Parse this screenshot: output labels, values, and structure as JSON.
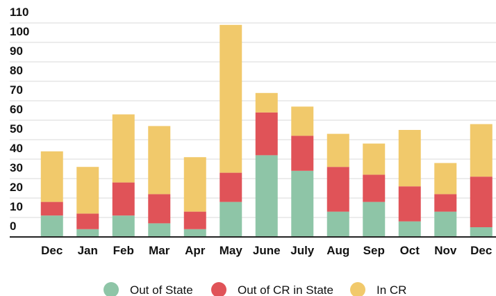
{
  "chart_data": {
    "type": "stacked_bar",
    "categories": [
      "Dec",
      "Jan",
      "Feb",
      "Mar",
      "Apr",
      "May",
      "June",
      "July",
      "Aug",
      "Sep",
      "Oct",
      "Nov",
      "Dec"
    ],
    "series": [
      {
        "name": "Out of State",
        "color": "#8ec5a7",
        "values": [
          11,
          4,
          11,
          7,
          4,
          18,
          42,
          34,
          13,
          18,
          8,
          13,
          5
        ]
      },
      {
        "name": "Out of CR in State",
        "color": "#e05358",
        "values": [
          7,
          8,
          17,
          15,
          9,
          15,
          22,
          18,
          23,
          14,
          18,
          9,
          26
        ]
      },
      {
        "name": "In CR",
        "color": "#f1c96b",
        "values": [
          26,
          24,
          35,
          35,
          28,
          76,
          10,
          15,
          17,
          16,
          29,
          16,
          27
        ]
      }
    ],
    "ylim": [
      0,
      110
    ],
    "yticks": [
      0,
      10,
      20,
      30,
      40,
      50,
      60,
      70,
      80,
      90,
      100,
      110
    ],
    "grid": true,
    "legend": "bottom"
  }
}
